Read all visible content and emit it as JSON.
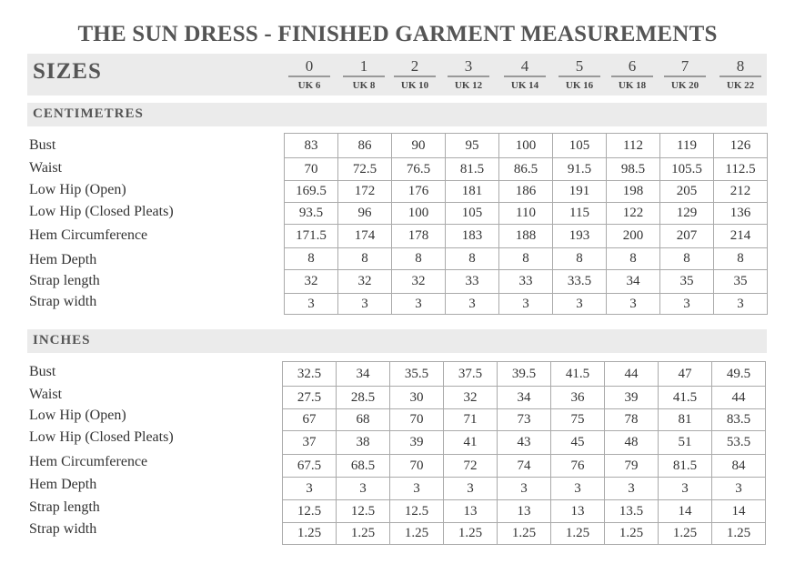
{
  "title": "THE SUN DRESS - FINISHED GARMENT MEASUREMENTS",
  "sizes": {
    "label": "SIZES",
    "columns": [
      {
        "size": "0",
        "uk": "UK 6"
      },
      {
        "size": "1",
        "uk": "UK 8"
      },
      {
        "size": "2",
        "uk": "UK 10"
      },
      {
        "size": "3",
        "uk": "UK 12"
      },
      {
        "size": "4",
        "uk": "UK 14"
      },
      {
        "size": "5",
        "uk": "UK 16"
      },
      {
        "size": "6",
        "uk": "UK 18"
      },
      {
        "size": "7",
        "uk": "UK 20"
      },
      {
        "size": "8",
        "uk": "UK 22"
      }
    ]
  },
  "sections": [
    {
      "label": "CENTIMETRES",
      "rows": [
        {
          "name": "Bust",
          "values": [
            "83",
            "86",
            "90",
            "95",
            "100",
            "105",
            "112",
            "119",
            "126"
          ]
        },
        {
          "name": "Waist",
          "values": [
            "70",
            "72.5",
            "76.5",
            "81.5",
            "86.5",
            "91.5",
            "98.5",
            "105.5",
            "112.5"
          ]
        },
        {
          "name": "Low Hip (Open)",
          "values": [
            "169.5",
            "172",
            "176",
            "181",
            "186",
            "191",
            "198",
            "205",
            "212"
          ]
        },
        {
          "name": "Low Hip (Closed Pleats)",
          "values": [
            "93.5",
            "96",
            "100",
            "105",
            "110",
            "115",
            "122",
            "129",
            "136"
          ]
        },
        {
          "name": "Hem Circumference",
          "values": [
            "171.5",
            "174",
            "178",
            "183",
            "188",
            "193",
            "200",
            "207",
            "214"
          ]
        },
        {
          "name": "Hem Depth",
          "values": [
            "8",
            "8",
            "8",
            "8",
            "8",
            "8",
            "8",
            "8",
            "8"
          ]
        },
        {
          "name": "Strap length",
          "values": [
            "32",
            "32",
            "32",
            "33",
            "33",
            "33.5",
            "34",
            "35",
            "35"
          ]
        },
        {
          "name": "Strap width",
          "values": [
            "3",
            "3",
            "3",
            "3",
            "3",
            "3",
            "3",
            "3",
            "3"
          ]
        }
      ]
    },
    {
      "label": "INCHES",
      "rows": [
        {
          "name": "Bust",
          "values": [
            "32.5",
            "34",
            "35.5",
            "37.5",
            "39.5",
            "41.5",
            "44",
            "47",
            "49.5"
          ]
        },
        {
          "name": "Waist",
          "values": [
            "27.5",
            "28.5",
            "30",
            "32",
            "34",
            "36",
            "39",
            "41.5",
            "44"
          ]
        },
        {
          "name": "Low Hip (Open)",
          "values": [
            "67",
            "68",
            "70",
            "71",
            "73",
            "75",
            "78",
            "81",
            "83.5"
          ]
        },
        {
          "name": "Low Hip (Closed Pleats)",
          "values": [
            "37",
            "38",
            "39",
            "41",
            "43",
            "45",
            "48",
            "51",
            "53.5"
          ]
        },
        {
          "name": "Hem Circumference",
          "values": [
            "67.5",
            "68.5",
            "70",
            "72",
            "74",
            "76",
            "79",
            "81.5",
            "84"
          ]
        },
        {
          "name": "Hem Depth",
          "values": [
            "3",
            "3",
            "3",
            "3",
            "3",
            "3",
            "3",
            "3",
            "3"
          ]
        },
        {
          "name": "Strap length",
          "values": [
            "12.5",
            "12.5",
            "12.5",
            "13",
            "13",
            "13",
            "13.5",
            "14",
            "14"
          ]
        },
        {
          "name": "Strap width",
          "values": [
            "1.25",
            "1.25",
            "1.25",
            "1.25",
            "1.25",
            "1.25",
            "1.25",
            "1.25",
            "1.25"
          ]
        }
      ]
    }
  ]
}
